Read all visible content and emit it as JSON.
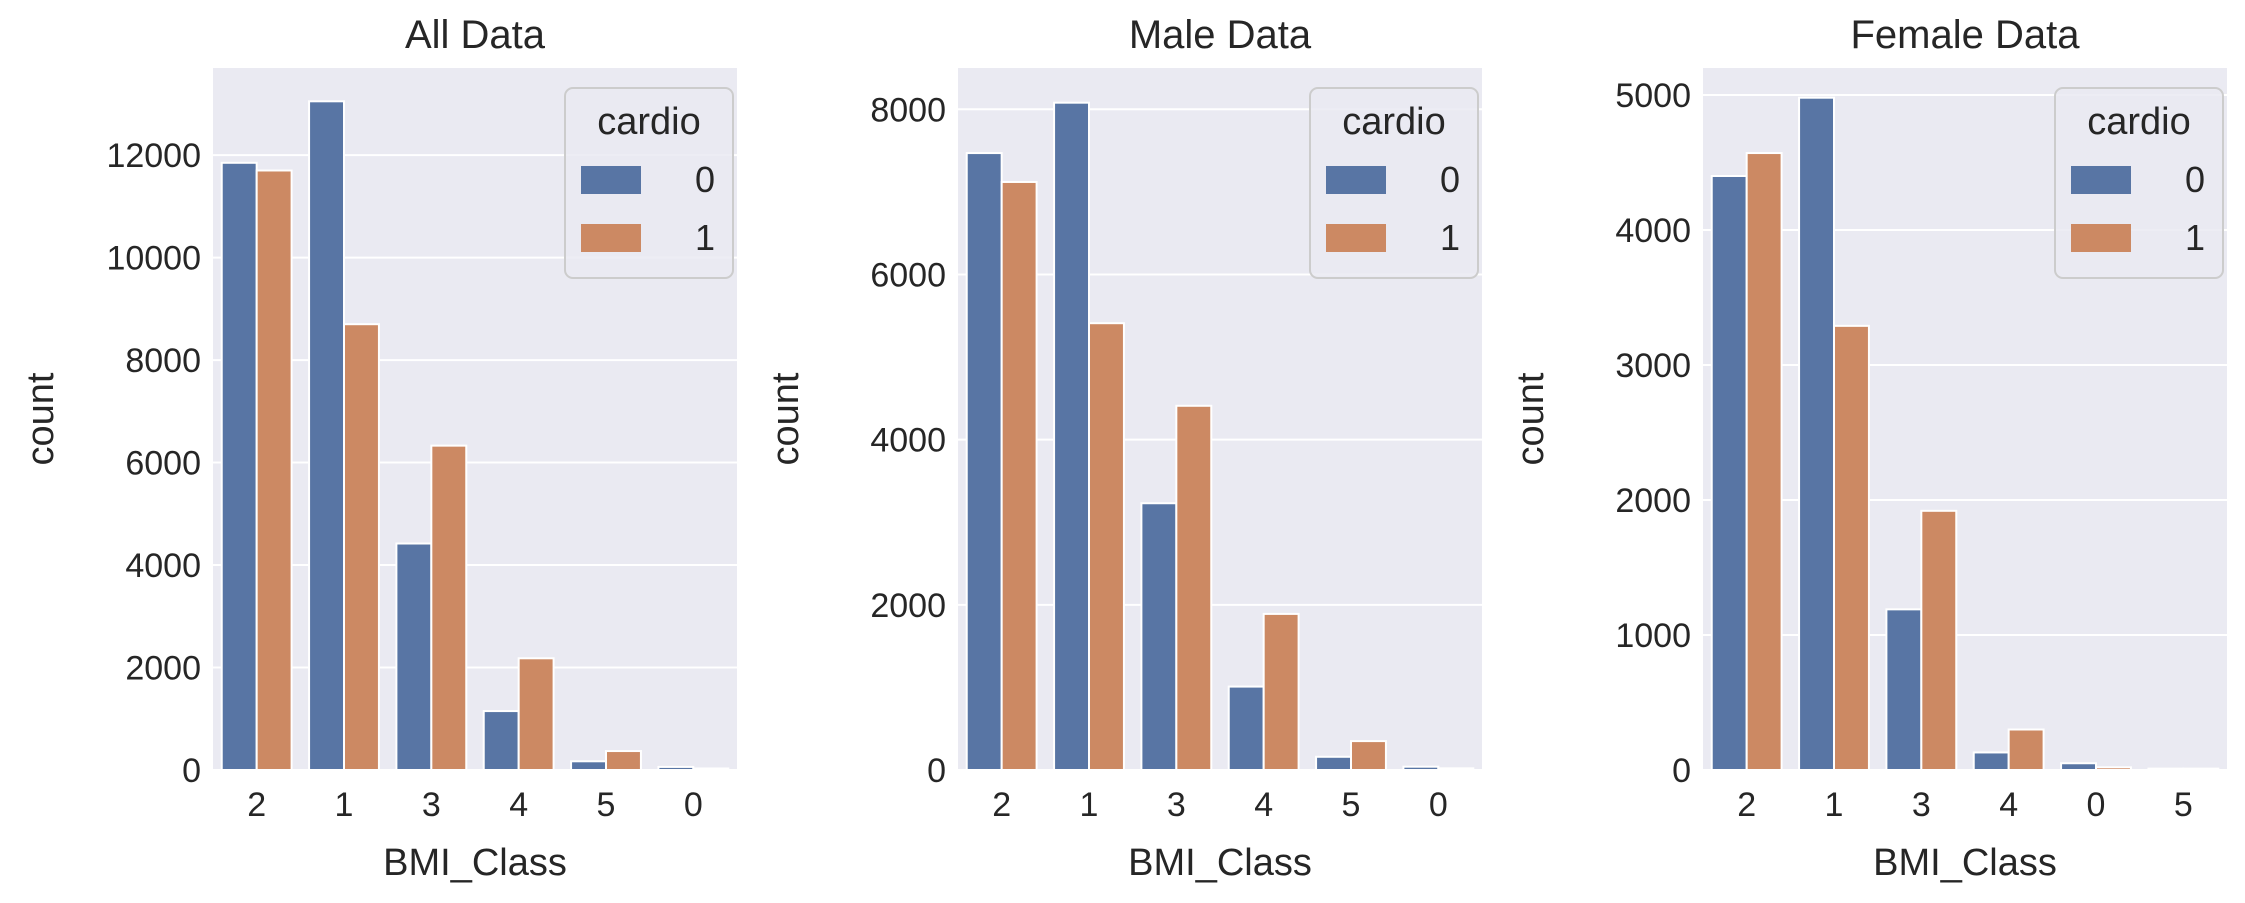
{
  "chart_data": [
    {
      "type": "bar",
      "title": "All Data",
      "xlabel": "BMI_Class",
      "ylabel": "count",
      "categories": [
        "2",
        "1",
        "3",
        "4",
        "5",
        "0"
      ],
      "ylim": [
        0,
        13700
      ],
      "yticks": [
        0,
        2000,
        4000,
        6000,
        8000,
        10000,
        12000
      ],
      "legend": {
        "title": "cardio",
        "position": "upper right"
      },
      "series": [
        {
          "name": "0",
          "values": [
            11850,
            13050,
            4420,
            1150,
            170,
            60
          ]
        },
        {
          "name": "1",
          "values": [
            11700,
            8700,
            6330,
            2180,
            370,
            30
          ]
        }
      ]
    },
    {
      "type": "bar",
      "title": "Male Data",
      "xlabel": "BMI_Class",
      "ylabel": "count",
      "categories": [
        "2",
        "1",
        "3",
        "4",
        "5",
        "0"
      ],
      "ylim": [
        0,
        8500
      ],
      "yticks": [
        0,
        2000,
        4000,
        6000,
        8000
      ],
      "legend": {
        "title": "cardio",
        "position": "upper right"
      },
      "series": [
        {
          "name": "0",
          "values": [
            7470,
            8080,
            3230,
            1010,
            160,
            40
          ]
        },
        {
          "name": "1",
          "values": [
            7120,
            5410,
            4410,
            1890,
            350,
            20
          ]
        }
      ]
    },
    {
      "type": "bar",
      "title": "Female Data",
      "xlabel": "BMI_Class",
      "ylabel": "count",
      "categories": [
        "2",
        "1",
        "3",
        "4",
        "0",
        "5"
      ],
      "ylim": [
        0,
        5200
      ],
      "yticks": [
        0,
        1000,
        2000,
        3000,
        4000,
        5000
      ],
      "legend": {
        "title": "cardio",
        "position": "upper right"
      },
      "series": [
        {
          "name": "0",
          "values": [
            4400,
            4980,
            1190,
            130,
            50,
            10
          ]
        },
        {
          "name": "1",
          "values": [
            4570,
            3290,
            1920,
            300,
            20,
            10
          ]
        }
      ]
    }
  ],
  "colors": {
    "series0": "#5875a4",
    "series1": "#cc8963",
    "plot_background": "#eaeaf2",
    "grid": "#ffffff",
    "text": "#262626"
  }
}
